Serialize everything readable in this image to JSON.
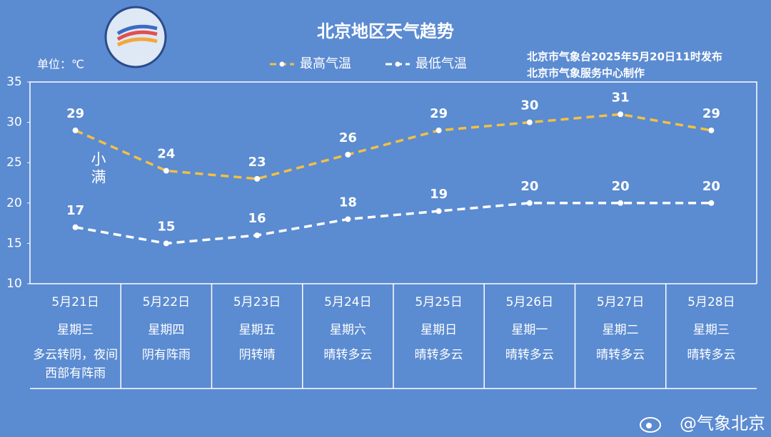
{
  "chart_data": {
    "type": "line",
    "title": "北京地区天气趋势",
    "unit_label": "单位：℃",
    "source": [
      "北京市气象台2025年5月20日11时发布",
      "北京市气象服务中心制作"
    ],
    "annotation": "小满",
    "watermark": "@气象北京",
    "categories": [
      "5月21日",
      "5月22日",
      "5月23日",
      "5月24日",
      "5月25日",
      "5月26日",
      "5月27日",
      "5月28日"
    ],
    "weekdays": [
      "星期三",
      "星期四",
      "星期五",
      "星期六",
      "星期日",
      "星期一",
      "星期二",
      "星期三"
    ],
    "weather": [
      "多云转阴，夜间西部有阵雨",
      "阴有阵雨",
      "阴转晴",
      "晴转多云",
      "晴转多云",
      "晴转多云",
      "晴转多云",
      "晴转多云"
    ],
    "series": [
      {
        "name": "最高气温",
        "color": "#f2c043",
        "values": [
          29,
          24,
          23,
          26,
          29,
          30,
          31,
          29
        ]
      },
      {
        "name": "最低气温",
        "color": "#ffffff",
        "values": [
          17,
          15,
          16,
          18,
          19,
          20,
          20,
          20
        ]
      }
    ],
    "ylim": [
      10,
      35
    ],
    "yticks": [
      10,
      15,
      20,
      25,
      30,
      35
    ]
  }
}
